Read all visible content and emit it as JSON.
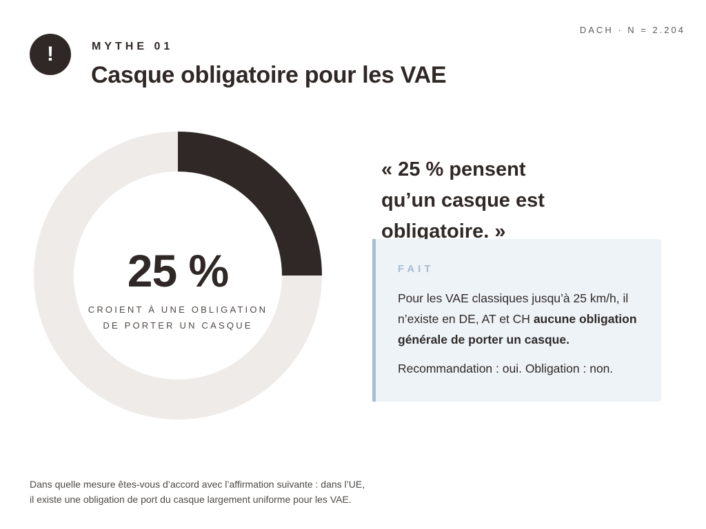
{
  "meta": "DACH · N = 2.204",
  "badge_icon": "exclamation-icon",
  "badge_glyph": "!",
  "kicker": "MYTHE 01",
  "title": "Casque obligatoire pour les VAE",
  "chart_data": {
    "type": "pie",
    "style": "donut",
    "categories": [
      "CROIENT À UNE OBLIGATION DE PORTER UN CASQUE",
      ""
    ],
    "values": [
      25,
      75
    ],
    "colors": [
      "#2f2826",
      "#efebe8"
    ],
    "center_value": "25 %",
    "center_caption_lines": [
      "CROIENT À UNE OBLIGATION",
      "DE PORTER UN CASQUE"
    ]
  },
  "quote_lines": [
    "« 25 % pensent",
    "qu’un casque est",
    "obligatoire. »"
  ],
  "fact": {
    "label": "FAIT",
    "body_prefix": "Pour les VAE classiques jusqu’à 25 km/h, il n’existe en DE, AT et CH ",
    "body_bold": "aucune obligation générale de porter un casque.",
    "note": "Recommandation : oui. Obligation : non."
  },
  "footnote_lines": [
    "Dans quelle mesure êtes-vous d’accord avec l’affirmation suivante : dans l’UE,",
    "il existe une obligation de port du casque largement uniforme pour les VAE."
  ],
  "colors": {
    "dark": "#2f2826",
    "track": "#efebe8",
    "fact_bg": "#eef3f8",
    "fact_border": "#a9bcd1",
    "fact_label": "#a8bccf"
  }
}
